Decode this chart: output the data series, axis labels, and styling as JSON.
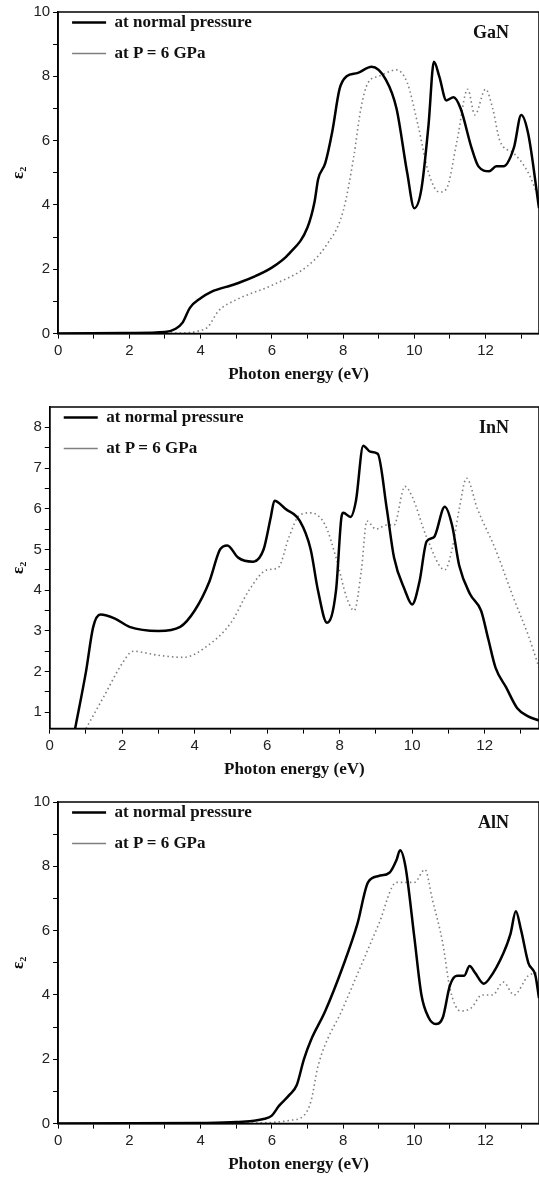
{
  "chart_data": [
    {
      "type": "line",
      "title": "GaN",
      "xlabel": "Photon energy (eV)",
      "ylabel": "ε₂",
      "legend": "top left",
      "marker": "none",
      "grid": false,
      "xlim": [
        0,
        13.5
      ],
      "xticks": [
        0,
        {
          "value": 1,
          "label": null
        },
        2,
        {
          "value": 3,
          "label": null
        },
        4,
        {
          "value": 5,
          "label": null
        },
        6,
        {
          "value": 7,
          "label": null
        },
        8,
        {
          "value": 9,
          "label": null
        },
        10,
        {
          "value": 11,
          "label": null
        },
        12,
        {
          "value": 13,
          "label": null
        }
      ],
      "ylim": [
        0,
        10
      ],
      "yticks": [
        0,
        {
          "value": 1,
          "label": null
        },
        2,
        {
          "value": 3,
          "label": null
        },
        4,
        {
          "value": 5,
          "label": null
        },
        6,
        {
          "value": 7,
          "label": null
        },
        8,
        {
          "value": 9,
          "label": null
        },
        10
      ],
      "series": [
        {
          "name": "at normal pressure",
          "color": "#000000",
          "line_style": "solid",
          "x": [
            0,
            2,
            3,
            3.3,
            3.5,
            3.7,
            4,
            4.3,
            5,
            6,
            6.5,
            7,
            7.2,
            7.3,
            7.5,
            7.7,
            7.9,
            8.1,
            8.4,
            8.8,
            9.2,
            9.5,
            9.8,
            10.0,
            10.2,
            10.4,
            10.55,
            10.7,
            10.9,
            11.1,
            11.3,
            11.6,
            11.8,
            12.1,
            12.3,
            12.5,
            12.8,
            13.0,
            13.2,
            13.5
          ],
          "values": [
            0,
            0.02,
            0.05,
            0.15,
            0.35,
            0.8,
            1.1,
            1.3,
            1.55,
            2.05,
            2.5,
            3.3,
            4.1,
            4.8,
            5.3,
            6.3,
            7.6,
            8.0,
            8.1,
            8.3,
            7.9,
            7.0,
            5.0,
            3.9,
            4.5,
            6.5,
            8.45,
            8.0,
            7.25,
            7.35,
            7.0,
            5.8,
            5.2,
            5.05,
            5.2,
            5.2,
            5.8,
            6.8,
            6.2,
            3.9
          ]
        },
        {
          "name": "at P = 6 GPa",
          "color": "#7f7f7f",
          "line_style": "dotted",
          "x": [
            0,
            3.5,
            4.0,
            4.2,
            4.5,
            5,
            6,
            7,
            7.5,
            8,
            8.3,
            8.5,
            8.7,
            9.0,
            9.5,
            9.8,
            10.1,
            10.4,
            10.7,
            10.9,
            11.2,
            11.5,
            11.7,
            12.0,
            12.2,
            12.4,
            12.8,
            13.2,
            13.5
          ],
          "values": [
            0,
            0.02,
            0.1,
            0.2,
            0.7,
            1.05,
            1.5,
            2.1,
            2.7,
            3.8,
            5.5,
            7.0,
            7.8,
            8.0,
            8.2,
            7.8,
            6.5,
            5.0,
            4.4,
            4.5,
            6.0,
            7.6,
            6.8,
            7.6,
            7.0,
            6.0,
            5.6,
            5.0,
            4.2
          ]
        }
      ]
    },
    {
      "type": "line",
      "title": "InN",
      "xlabel": "Photon energy (eV)",
      "ylabel": "ε₂",
      "legend": "top left",
      "marker": "none",
      "grid": false,
      "xlim": [
        0,
        13.5
      ],
      "xticks": [
        0,
        {
          "value": 1,
          "label": null
        },
        2,
        {
          "value": 3,
          "label": null
        },
        4,
        {
          "value": 5,
          "label": null
        },
        6,
        {
          "value": 7,
          "label": null
        },
        8,
        {
          "value": 9,
          "label": null
        },
        10,
        {
          "value": 11,
          "label": null
        },
        12,
        {
          "value": 13,
          "label": null
        }
      ],
      "ylim": [
        0.6,
        8.5
      ],
      "yticks": [
        1,
        {
          "value": 1.5,
          "label": null
        },
        2,
        {
          "value": 2.5,
          "label": null
        },
        3,
        {
          "value": 3.5,
          "label": null
        },
        4,
        {
          "value": 4.5,
          "label": null
        },
        5,
        {
          "value": 5.5,
          "label": null
        },
        6,
        {
          "value": 6.5,
          "label": null
        },
        7,
        {
          "value": 7.5,
          "label": null
        },
        8
      ],
      "series": [
        {
          "name": "at normal pressure",
          "color": "#000000",
          "line_style": "solid",
          "x": [
            0.7,
            1.0,
            1.2,
            1.4,
            1.8,
            2.2,
            3.0,
            3.6,
            4.0,
            4.4,
            4.7,
            4.9,
            5.2,
            5.6,
            5.9,
            6.1,
            6.2,
            6.5,
            6.9,
            7.2,
            7.4,
            7.65,
            7.9,
            8.05,
            8.1,
            8.3,
            8.45,
            8.65,
            8.85,
            9.05,
            9.3,
            9.5,
            9.8,
            10.0,
            10.2,
            10.4,
            10.6,
            10.9,
            11.1,
            11.3,
            11.6,
            11.9,
            12.1,
            12.3,
            12.6,
            12.9,
            13.2,
            13.5
          ],
          "values": [
            0.6,
            2.0,
            3.1,
            3.4,
            3.3,
            3.1,
            3.0,
            3.1,
            3.5,
            4.2,
            5.0,
            5.1,
            4.8,
            4.7,
            5.0,
            5.8,
            6.2,
            6.0,
            5.7,
            5.0,
            4.0,
            3.2,
            4.0,
            5.8,
            5.9,
            5.8,
            6.2,
            7.55,
            7.4,
            7.35,
            6.0,
            4.8,
            4.0,
            3.65,
            4.2,
            5.2,
            5.3,
            6.05,
            5.6,
            4.6,
            3.9,
            3.5,
            2.8,
            2.1,
            1.6,
            1.1,
            0.9,
            0.8
          ]
        },
        {
          "name": "at P = 6 GPa",
          "color": "#7f7f7f",
          "line_style": "dotted",
          "x": [
            1.0,
            1.5,
            2.0,
            2.3,
            3.0,
            3.7,
            4.3,
            5.0,
            5.5,
            6.0,
            6.3,
            6.6,
            6.9,
            7.2,
            7.6,
            7.9,
            8.2,
            8.4,
            8.6,
            8.75,
            9.0,
            9.3,
            9.5,
            9.8,
            10.0,
            10.4,
            10.9,
            11.1,
            11.3,
            11.5,
            11.8,
            12.3,
            12.8,
            13.2,
            13.5
          ],
          "values": [
            0.6,
            1.4,
            2.2,
            2.5,
            2.4,
            2.35,
            2.6,
            3.2,
            4.0,
            4.5,
            4.55,
            5.3,
            5.85,
            5.9,
            5.6,
            4.8,
            3.8,
            3.5,
            4.5,
            5.7,
            5.5,
            5.6,
            5.6,
            6.55,
            6.3,
            5.3,
            4.5,
            5.0,
            6.0,
            6.75,
            6.0,
            5.0,
            3.8,
            2.9,
            2.1
          ]
        }
      ]
    },
    {
      "type": "line",
      "title": "AlN",
      "xlabel": "Photon energy (eV)",
      "ylabel": "ε₂",
      "legend": "top left",
      "marker": "none",
      "grid": false,
      "xlim": [
        0,
        13.5
      ],
      "xticks": [
        0,
        {
          "value": 1,
          "label": null
        },
        2,
        {
          "value": 3,
          "label": null
        },
        4,
        {
          "value": 5,
          "label": null
        },
        6,
        {
          "value": 7,
          "label": null
        },
        8,
        {
          "value": 9,
          "label": null
        },
        10,
        {
          "value": 11,
          "label": null
        },
        12,
        {
          "value": 13,
          "label": null
        }
      ],
      "ylim": [
        0,
        10
      ],
      "yticks": [
        0,
        {
          "value": 1,
          "label": null
        },
        2,
        {
          "value": 3,
          "label": null
        },
        4,
        {
          "value": 5,
          "label": null
        },
        6,
        {
          "value": 7,
          "label": null
        },
        8,
        {
          "value": 9,
          "label": null
        },
        10
      ],
      "series": [
        {
          "name": "at normal pressure",
          "color": "#000000",
          "line_style": "solid",
          "x": [
            0,
            4,
            5,
            5.8,
            6.0,
            6.2,
            6.5,
            6.7,
            6.9,
            7.1,
            7.5,
            8.0,
            8.4,
            8.7,
            9.0,
            9.3,
            9.5,
            9.6,
            9.75,
            10.0,
            10.2,
            10.4,
            10.6,
            10.8,
            11.0,
            11.2,
            11.4,
            11.55,
            11.7,
            11.95,
            12.1,
            12.5,
            12.7,
            12.85,
            13.0,
            13.2,
            13.4,
            13.5
          ],
          "values": [
            0,
            0.02,
            0.05,
            0.15,
            0.25,
            0.55,
            0.9,
            1.2,
            2.0,
            2.6,
            3.5,
            4.9,
            6.2,
            7.5,
            7.7,
            7.8,
            8.2,
            8.5,
            8.0,
            5.8,
            4.0,
            3.3,
            3.1,
            3.3,
            4.3,
            4.6,
            4.6,
            4.9,
            4.7,
            4.35,
            4.5,
            5.3,
            5.9,
            6.6,
            6.0,
            5.0,
            4.6,
            3.9
          ]
        },
        {
          "name": "at P = 6 GPa",
          "color": "#7f7f7f",
          "line_style": "dotted",
          "x": [
            0,
            5.5,
            6.5,
            6.9,
            7.1,
            7.3,
            8,
            8.5,
            9.0,
            9.5,
            9.8,
            10.0,
            10.3,
            10.5,
            10.8,
            11.0,
            11.3,
            11.6,
            11.9,
            12.2,
            12.5,
            12.8,
            13.2,
            13.5
          ],
          "values": [
            0,
            0.02,
            0.1,
            0.25,
            0.7,
            1.8,
            3.6,
            4.9,
            6.2,
            7.5,
            7.5,
            7.5,
            7.9,
            7.0,
            5.6,
            4.2,
            3.5,
            3.6,
            4.0,
            4.0,
            4.4,
            4.0,
            4.6,
            4.7
          ]
        }
      ]
    }
  ]
}
